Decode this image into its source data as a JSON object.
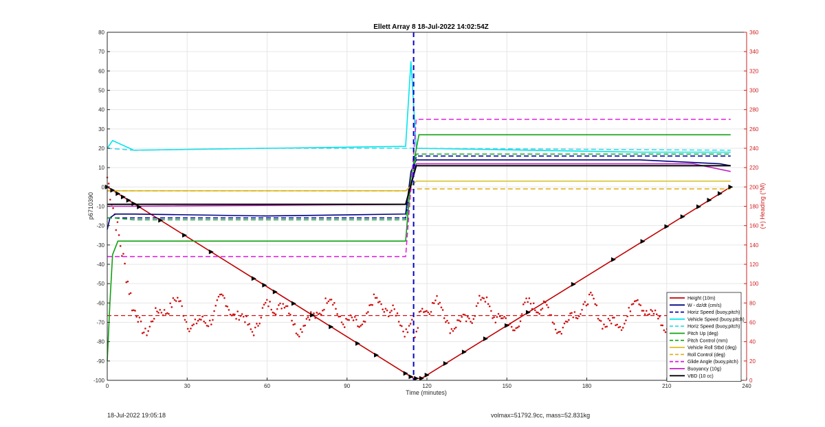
{
  "footer": {
    "timestamp": "18-Jul-2022 19:05:18",
    "mass_info": "volmax=51792.9cc, mass=52.831kg"
  },
  "chart_data": {
    "type": "line",
    "title": "Ellett Array 8 18-Jul-2022 14:02:54Z",
    "xlabel": "Time (minutes)",
    "ylabel": "p6710390",
    "y2label": "(+) Heading (°M)",
    "xlim": [
      0,
      240
    ],
    "ylim": [
      -100,
      80
    ],
    "y2lim": [
      0,
      360
    ],
    "xticks": [
      0,
      30,
      60,
      90,
      120,
      150,
      180,
      210,
      240
    ],
    "yticks": [
      -100,
      -90,
      -80,
      -70,
      -60,
      -50,
      -40,
      -30,
      -20,
      -10,
      0,
      10,
      20,
      30,
      40,
      50,
      60,
      70,
      80
    ],
    "y2ticks": [
      0,
      20,
      40,
      60,
      80,
      100,
      120,
      140,
      160,
      180,
      200,
      220,
      240,
      260,
      280,
      300,
      320,
      340,
      360
    ],
    "grid": true,
    "legend_position": "bottom-right",
    "apogee_line_x": 115,
    "heading_mean": 67,
    "series": [
      {
        "name": "Height (10m)",
        "color": "#c00000",
        "style": "solid",
        "x": [
          0,
          115,
          118,
          234
        ],
        "y": [
          0,
          -99,
          -99,
          0
        ]
      },
      {
        "name": "W - dz/dt (cm/s)",
        "color": "#00007f",
        "style": "solid",
        "x": [
          0,
          1,
          3,
          10,
          60,
          112,
          114,
          116,
          200,
          230,
          234
        ],
        "y": [
          -22,
          -16,
          -14,
          -14,
          -15,
          -14,
          8,
          14,
          14,
          12,
          11
        ]
      },
      {
        "name": "Horiz Speed (buoy,pitch)",
        "color": "#0000c0",
        "style": "dashed",
        "x": [
          0,
          10,
          60,
          112,
          116,
          234
        ],
        "y": [
          -16,
          -16,
          -16,
          -16,
          16,
          16
        ]
      },
      {
        "name": "Vehicle Speed (buoy,pitch)",
        "color": "#00e5ee",
        "style": "solid",
        "x": [
          0,
          2,
          10,
          60,
          112,
          114,
          116,
          200,
          234
        ],
        "y": [
          20,
          24,
          19,
          20,
          21,
          65,
          20,
          18,
          18
        ]
      },
      {
        "name": "Horiz Speed (buoy,pitch)",
        "color": "#40d8e8",
        "style": "dashed",
        "x": [
          0,
          10,
          60,
          112,
          116,
          234
        ],
        "y": [
          20,
          19,
          20,
          20,
          20,
          19
        ]
      },
      {
        "name": "Pitch Up (deg)",
        "color": "#10a010",
        "style": "solid",
        "x": [
          0,
          1,
          2,
          4,
          60,
          112,
          114,
          117,
          200,
          234
        ],
        "y": [
          -90,
          -60,
          -35,
          -28,
          -28,
          -28,
          5,
          27,
          27,
          27
        ]
      },
      {
        "name": "Pitch Control (mm)",
        "color": "#20b020",
        "style": "dashed",
        "x": [
          0,
          2,
          10,
          112,
          116,
          234
        ],
        "y": [
          -16,
          -16,
          -17,
          -17,
          17,
          17
        ]
      },
      {
        "name": "Vehicle Roll Stbd (deg)",
        "color": "#d8c020",
        "style": "solid",
        "x": [
          0,
          10,
          112,
          116,
          234
        ],
        "y": [
          -2,
          -2,
          -2,
          3,
          3
        ]
      },
      {
        "name": "Roll Control (deg)",
        "color": "#e0b020",
        "style": "dashed",
        "x": [
          0,
          112,
          116,
          234
        ],
        "y": [
          -2,
          -2,
          -1,
          -1
        ]
      },
      {
        "name": "Glide Angle (buoy,pitch)",
        "color": "#e020e0",
        "style": "dashed",
        "x": [
          0,
          10,
          112,
          116,
          234
        ],
        "y": [
          -36,
          -36,
          -36,
          35,
          35
        ]
      },
      {
        "name": "Buoyancy (10g)",
        "color": "#c020c0",
        "style": "solid",
        "x": [
          0,
          10,
          112,
          116,
          220,
          234
        ],
        "y": [
          -10,
          -10,
          -9,
          12,
          12,
          8
        ]
      },
      {
        "name": "VBD (10 cc)",
        "color": "#000000",
        "style": "solid",
        "x": [
          0,
          10,
          112,
          116,
          234
        ],
        "y": [
          -9,
          -9,
          -9,
          11,
          11
        ]
      }
    ]
  }
}
